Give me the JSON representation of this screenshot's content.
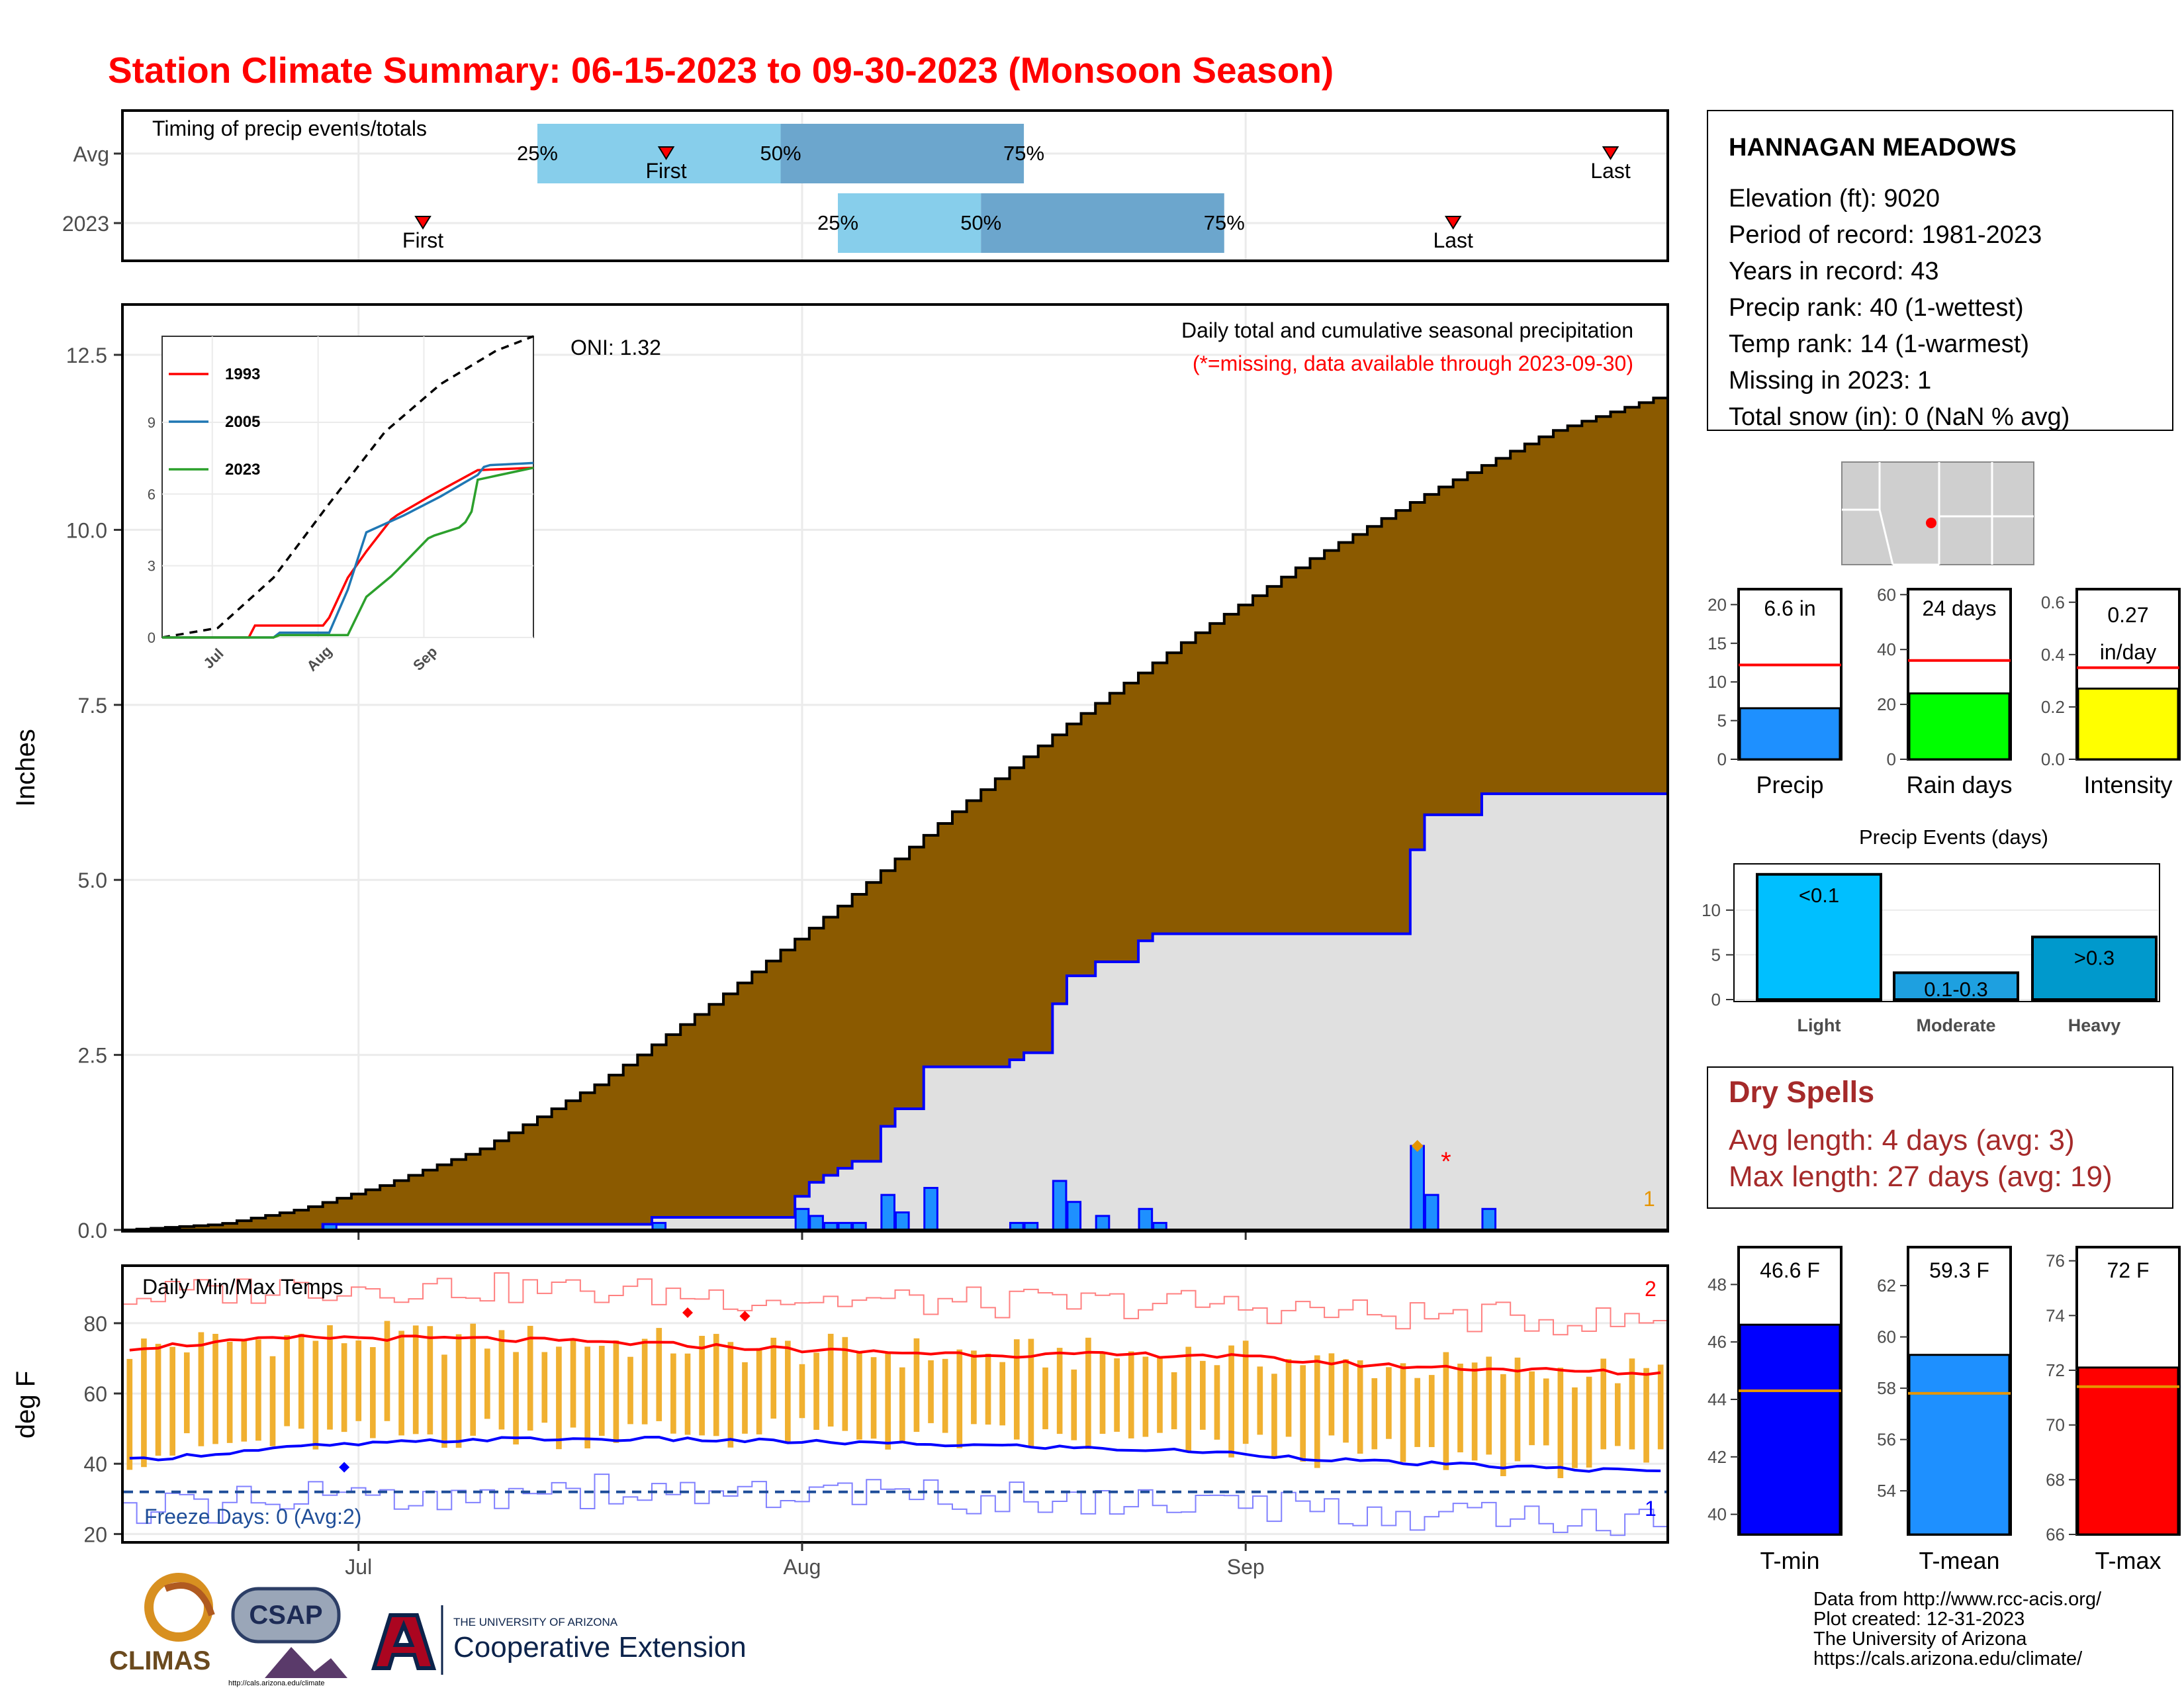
{
  "title": "Station Climate Summary: 06-15-2023 to 09-30-2023 (Monsoon Season)",
  "colors": {
    "title": "#ff0000",
    "brown": "#8b5a00",
    "light_gray": "#e0e0e0",
    "blue_line": "#0000ff",
    "bar_blue": "#1e90ff",
    "quartile_light": "#87ceeb",
    "quartile_dark": "#6ca6cd",
    "tmax_avg": "#ff0000",
    "tmin_avg": "#0000ff",
    "temp_bar": "#f0b030",
    "dry_red": "#a52a2a"
  },
  "timing": {
    "label": "Timing of precip events/totals",
    "rows": [
      {
        "label": "Avg",
        "first_date": "07-23",
        "last_date": "09-27",
        "q25": "07-14",
        "q50": "07-31",
        "q75": "08-17"
      },
      {
        "label": "2023",
        "first_date": "07-06",
        "last_date": "09-16",
        "q25": "08-04",
        "q50": "08-14",
        "q75": "08-31"
      }
    ],
    "first_label": "First",
    "last_label": "Last",
    "q25_label": "25%",
    "q50_label": "50%",
    "q75_label": "75%"
  },
  "precip_panel": {
    "ylabel": "Inches",
    "yticks": [
      "0.0",
      "2.5",
      "5.0",
      "7.5",
      "10.0",
      "12.5"
    ],
    "heading": "Daily total and cumulative seasonal precipitation",
    "missing_note": "(*=missing, data available through 2023-09-30)",
    "oni": "ONI: 1.32",
    "missing_count": "1",
    "inset": {
      "series": [
        {
          "name": "1993",
          "color": "#ff0000"
        },
        {
          "name": "2005",
          "color": "#1f77b4"
        },
        {
          "name": "2023",
          "color": "#2ca02c"
        }
      ],
      "yticks": [
        "0",
        "3",
        "6",
        "9"
      ],
      "xticks": [
        "Jul",
        "Aug",
        "Sep"
      ]
    }
  },
  "temp_panel": {
    "ylabel": "deg F",
    "heading": "Daily Min/Max Temps",
    "freeze_label": "Freeze Days: 0 (Avg:2)",
    "max_count": "2",
    "min_count": "1",
    "yticks": [
      "20",
      "40",
      "60",
      "80"
    ],
    "xticks": [
      "Jul",
      "Aug",
      "Sep"
    ]
  },
  "station": {
    "name": "HANNAGAN MEADOWS",
    "lines": [
      "Elevation (ft): 9020",
      "Period of record: 1981-2023",
      "Years in record: 43",
      "Precip rank: 40 (1-wettest)",
      "Temp rank: 14 (1-warmest)",
      "Missing in 2023: 1",
      "Total snow (in): 0 (NaN % avg)"
    ]
  },
  "summary_bars": [
    {
      "label": "Precip",
      "value_text": "6.6 in",
      "value": 6.6,
      "avg": 12.2,
      "ymax": 22,
      "yticks": [
        "0",
        "5",
        "10",
        "15",
        "20"
      ],
      "tick_vals": [
        0,
        5,
        10,
        15,
        20
      ],
      "color": "#1e90ff"
    },
    {
      "label": "Rain days",
      "value_text": "24 days",
      "value": 24,
      "avg": 36,
      "ymax": 62,
      "yticks": [
        "0",
        "20",
        "40",
        "60"
      ],
      "tick_vals": [
        0,
        20,
        40,
        60
      ],
      "color": "#00ff00"
    },
    {
      "label": "Intensity",
      "value_text": "0.27 in/day",
      "value": 0.27,
      "avg": 0.35,
      "ymax": 0.65,
      "yticks": [
        "0.0",
        "0.2",
        "0.4",
        "0.6"
      ],
      "tick_vals": [
        0,
        0.2,
        0.4,
        0.6
      ],
      "color": "#ffff00"
    }
  ],
  "events": {
    "title": "Precip Events (days)",
    "categories": [
      "Light",
      "Moderate",
      "Heavy"
    ],
    "bar_labels": [
      "<0.1",
      "0.1-0.3",
      ">0.3"
    ],
    "values": [
      14,
      3,
      7
    ],
    "colors": [
      "#00bfff",
      "#1ea0e0",
      "#0099cc"
    ],
    "yticks": [
      "0",
      "5",
      "10"
    ]
  },
  "dry_spells": {
    "title": "Dry Spells",
    "avg_length": "Avg length: 4 days (avg: 3)",
    "max_length": "Max length: 27 days (avg: 19)"
  },
  "temp_bars": [
    {
      "label": "T-min",
      "value_text": "46.6 F",
      "value": 46.6,
      "avg": 44.3,
      "ymin": 39.3,
      "ymax": 49.3,
      "yticks": [
        "40",
        "42",
        "44",
        "46",
        "48"
      ],
      "tick_vals": [
        40,
        42,
        44,
        46,
        48
      ],
      "color": "#0000ff"
    },
    {
      "label": "T-mean",
      "value_text": "59.3 F",
      "value": 59.3,
      "avg": 57.8,
      "ymin": 52.3,
      "ymax": 63.5,
      "yticks": [
        "54",
        "56",
        "58",
        "60",
        "62"
      ],
      "tick_vals": [
        54,
        56,
        58,
        60,
        62
      ],
      "color": "#1e90ff"
    },
    {
      "label": "T-max",
      "value_text": "72 F",
      "value": 72.1,
      "avg": 71.4,
      "ymin": 66,
      "ymax": 76.5,
      "yticks": [
        "66",
        "68",
        "70",
        "72",
        "74",
        "76"
      ],
      "tick_vals": [
        66,
        68,
        70,
        72,
        74,
        76
      ],
      "color": "#ff0000"
    }
  ],
  "footer": {
    "credits": [
      "Data from http://www.rcc-acis.org/",
      "Plot created: 12-31-2023",
      "The University of Arizona",
      "https://cals.arizona.edu/climate/"
    ],
    "climas": "CLIMAS",
    "csap": "CSAP",
    "csap_url": "http://cals.arizona.edu/climate",
    "ua_small": "THE UNIVERSITY OF ARIZONA",
    "ua_big": "Cooperative Extension"
  },
  "chart_data": [
    {
      "type": "area",
      "name": "cumulative_precip",
      "x_start": "06-15",
      "x_end": "09-30",
      "ylim": [
        0,
        13.2
      ],
      "avg_cumulative_knots": [
        [
          0,
          0
        ],
        [
          8,
          0.08
        ],
        [
          15,
          0.3
        ],
        [
          22,
          0.65
        ],
        [
          30,
          1.15
        ],
        [
          40,
          2.1
        ],
        [
          50,
          3.3
        ],
        [
          60,
          4.6
        ],
        [
          70,
          6.0
        ],
        [
          80,
          7.3
        ],
        [
          90,
          8.5
        ],
        [
          100,
          9.6
        ],
        [
          110,
          10.55
        ],
        [
          120,
          11.4
        ],
        [
          130,
          11.95
        ]
      ],
      "daily_2023": [
        [
          17,
          0.08
        ],
        [
          44,
          0.1
        ],
        [
          57,
          0.3
        ],
        [
          58,
          0.2
        ],
        [
          59,
          0.1
        ],
        [
          60,
          0.1
        ],
        [
          61,
          0.1
        ],
        [
          64,
          0.5
        ],
        [
          65,
          0.25
        ],
        [
          68,
          0.6
        ],
        [
          75,
          0.1
        ],
        [
          76,
          0.1
        ],
        [
          78,
          0.7
        ],
        [
          80,
          0.4
        ],
        [
          82,
          0.2
        ],
        [
          85,
          0.1
        ],
        [
          86,
          0.2
        ],
        [
          87,
          0.1
        ],
        [
          108,
          1.2
        ],
        [
          109,
          0.5
        ],
        [
          114,
          0.3
        ]
      ],
      "missing_days": [
        111
      ],
      "xticks": [
        "Jul",
        "Aug",
        "Sep"
      ]
    },
    {
      "type": "line",
      "name": "daily_temps",
      "ylim": [
        18,
        96
      ],
      "avg_tmax_knots": [
        [
          0,
          73
        ],
        [
          15,
          76
        ],
        [
          30,
          75.5
        ],
        [
          45,
          74
        ],
        [
          60,
          72
        ],
        [
          75,
          71
        ],
        [
          90,
          71
        ],
        [
          105,
          68
        ],
        [
          130,
          65.5
        ]
      ],
      "avg_tmin_knots": [
        [
          0,
          41
        ],
        [
          15,
          45
        ],
        [
          30,
          47
        ],
        [
          45,
          47
        ],
        [
          60,
          46
        ],
        [
          75,
          45
        ],
        [
          90,
          43.5
        ],
        [
          105,
          40.5
        ],
        [
          130,
          37.5
        ]
      ],
      "freeze_line": 32
    }
  ]
}
